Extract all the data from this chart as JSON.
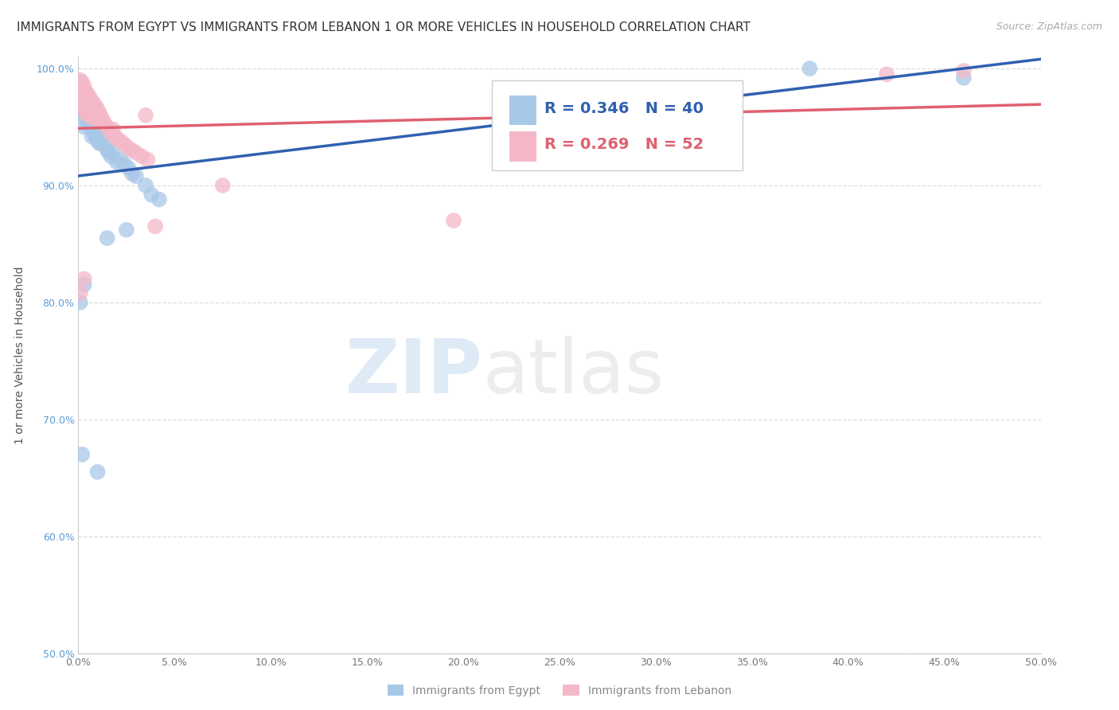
{
  "title": "IMMIGRANTS FROM EGYPT VS IMMIGRANTS FROM LEBANON 1 OR MORE VEHICLES IN HOUSEHOLD CORRELATION CHART",
  "source": "Source: ZipAtlas.com",
  "ylabel": "1 or more Vehicles in Household",
  "xlabel_egypt": "Immigrants from Egypt",
  "xlabel_lebanon": "Immigrants from Lebanon",
  "egypt_R": 0.346,
  "egypt_N": 40,
  "lebanon_R": 0.269,
  "lebanon_N": 52,
  "egypt_color": "#a8c8e8",
  "lebanon_color": "#f4b8c8",
  "egypt_line_color": "#3060b0",
  "lebanon_line_color": "#e0506080",
  "xlim": [
    0.0,
    0.5
  ],
  "ylim": [
    0.5,
    1.01
  ],
  "xticks": [
    0.0,
    0.05,
    0.1,
    0.15,
    0.2,
    0.25,
    0.3,
    0.35,
    0.4,
    0.45,
    0.5
  ],
  "yticks": [
    0.5,
    0.6,
    0.7,
    0.8,
    0.9,
    1.0
  ],
  "background_color": "#ffffff",
  "grid_color": "#cccccc",
  "title_fontsize": 11,
  "axis_fontsize": 9,
  "legend_fontsize": 14,
  "egypt_x": [
    0.002,
    0.002,
    0.003,
    0.003,
    0.004,
    0.004,
    0.005,
    0.005,
    0.006,
    0.006,
    0.007,
    0.007,
    0.008,
    0.009,
    0.01,
    0.01,
    0.011,
    0.012,
    0.013,
    0.014,
    0.015,
    0.016,
    0.017,
    0.018,
    0.019,
    0.02,
    0.022,
    0.025,
    0.027,
    0.03,
    0.035,
    0.04,
    0.001,
    0.002,
    0.003,
    0.005,
    0.008,
    0.012,
    0.015,
    0.02
  ],
  "egypt_y": [
    0.965,
    0.98,
    0.96,
    0.945,
    0.96,
    0.975,
    0.955,
    0.96,
    0.955,
    0.96,
    0.945,
    0.94,
    0.95,
    0.95,
    0.94,
    0.945,
    0.935,
    0.945,
    0.94,
    0.935,
    0.935,
    0.93,
    0.935,
    0.93,
    0.935,
    0.93,
    0.92,
    0.92,
    0.915,
    0.91,
    0.9,
    0.895,
    0.81,
    0.82,
    0.84,
    0.85,
    0.86,
    0.82,
    0.815,
    0.81
  ],
  "lebanon_x": [
    0.001,
    0.002,
    0.002,
    0.003,
    0.003,
    0.004,
    0.004,
    0.005,
    0.005,
    0.006,
    0.006,
    0.006,
    0.007,
    0.007,
    0.007,
    0.008,
    0.008,
    0.008,
    0.009,
    0.009,
    0.01,
    0.01,
    0.011,
    0.011,
    0.012,
    0.012,
    0.013,
    0.014,
    0.015,
    0.016,
    0.017,
    0.018,
    0.019,
    0.02,
    0.022,
    0.025,
    0.028,
    0.03,
    0.002,
    0.003,
    0.004,
    0.005,
    0.006,
    0.007,
    0.008,
    0.001,
    0.002,
    0.003,
    0.01,
    0.015,
    0.04,
    0.025
  ],
  "lebanon_y": [
    0.985,
    0.985,
    0.975,
    0.975,
    0.98,
    0.975,
    0.985,
    0.975,
    0.98,
    0.98,
    0.975,
    0.97,
    0.975,
    0.97,
    0.965,
    0.97,
    0.965,
    0.96,
    0.965,
    0.96,
    0.96,
    0.955,
    0.96,
    0.955,
    0.95,
    0.955,
    0.95,
    0.95,
    0.945,
    0.94,
    0.94,
    0.935,
    0.93,
    0.925,
    0.92,
    0.92,
    0.91,
    0.9,
    0.9,
    0.895,
    0.89,
    0.885,
    0.885,
    0.88,
    0.875,
    0.87,
    0.86,
    0.855,
    0.91,
    0.905,
    0.89,
    0.87
  ]
}
